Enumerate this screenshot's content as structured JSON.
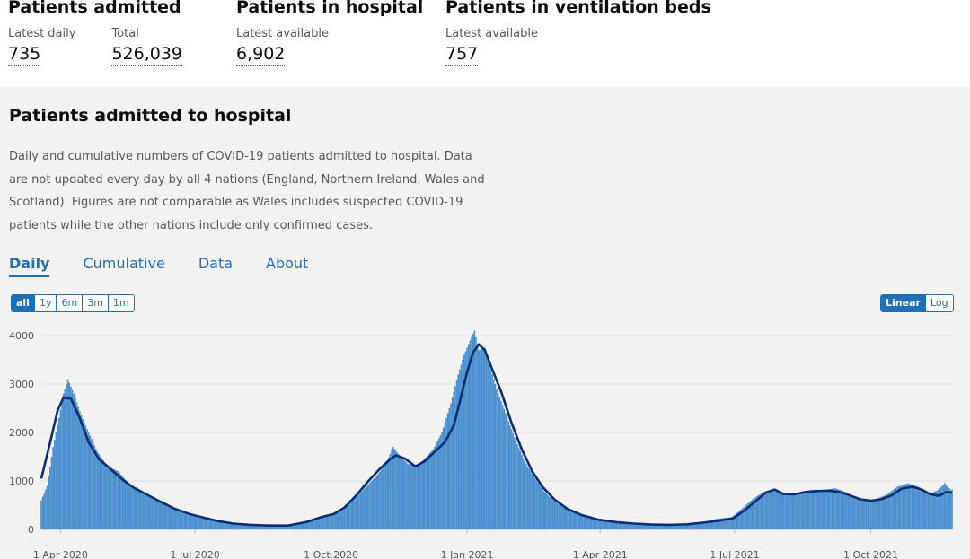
{
  "headlines": {
    "admitted": {
      "title": "Patients admitted",
      "metrics": [
        {
          "label": "Latest daily",
          "value": "735"
        },
        {
          "label": "Total",
          "value": "526,039"
        }
      ]
    },
    "in_hospital": {
      "title": "Patients in hospital",
      "metrics": [
        {
          "label": "Latest available",
          "value": "6,902"
        }
      ]
    },
    "ventilation": {
      "title": "Patients in ventilation beds",
      "metrics": [
        {
          "label": "Latest available",
          "value": "757"
        }
      ]
    }
  },
  "card": {
    "title": "Patients admitted to hospital",
    "description": "Daily and cumulative numbers of COVID-19 patients admitted to hospital. Data are not updated every day by all 4 nations (England, Northern Ireland, Wales and Scotland). Figures are not comparable as Wales includes suspected COVID-19 patients while the other nations include only confirmed cases.",
    "tabs": [
      {
        "label": "Daily",
        "active": true
      },
      {
        "label": "Cumulative",
        "active": false
      },
      {
        "label": "Data",
        "active": false
      },
      {
        "label": "About",
        "active": false
      }
    ],
    "range_buttons": [
      {
        "label": "all",
        "active": true
      },
      {
        "label": "1y",
        "active": false
      },
      {
        "label": "6m",
        "active": false
      },
      {
        "label": "3m",
        "active": false
      },
      {
        "label": "1m",
        "active": false
      }
    ],
    "scale_buttons": [
      {
        "label": "Linear",
        "active": true
      },
      {
        "label": "Log",
        "active": false
      }
    ]
  },
  "colors": {
    "bar": "#4a90cf",
    "line": "#0b2d73",
    "accent": "#1d70b8",
    "grid": "#e1e1e1"
  },
  "chart_data": {
    "type": "bar",
    "title": "",
    "xlabel": "",
    "ylabel": "",
    "ylim": [
      0,
      4000
    ],
    "xlim": [
      "2020-03-19",
      "2021-11-25"
    ],
    "y_ticks": [
      0,
      1000,
      2000,
      3000,
      4000
    ],
    "x_ticks": [
      {
        "date": "2020-04-01",
        "label": "1 Apr 2020"
      },
      {
        "date": "2020-07-01",
        "label": "1 Jul 2020"
      },
      {
        "date": "2020-10-01",
        "label": "1 Oct 2020"
      },
      {
        "date": "2021-01-01",
        "label": "1 Jan 2021"
      },
      {
        "date": "2021-04-01",
        "label": "1 Apr 2021"
      },
      {
        "date": "2021-07-01",
        "label": "1 Jul 2021"
      },
      {
        "date": "2021-10-01",
        "label": "1 Oct 2021"
      }
    ],
    "series": [
      {
        "kind": "bar",
        "points": [
          [
            "2020-03-19",
            600
          ],
          [
            "2020-03-23",
            900
          ],
          [
            "2020-03-27",
            1700
          ],
          [
            "2020-03-31",
            2300
          ],
          [
            "2020-04-03",
            2800
          ],
          [
            "2020-04-06",
            3100
          ],
          [
            "2020-04-10",
            2800
          ],
          [
            "2020-04-15",
            2350
          ],
          [
            "2020-04-20",
            2000
          ],
          [
            "2020-04-26",
            1600
          ],
          [
            "2020-05-03",
            1300
          ],
          [
            "2020-05-10",
            1200
          ],
          [
            "2020-05-17",
            950
          ],
          [
            "2020-05-24",
            800
          ],
          [
            "2020-05-31",
            680
          ],
          [
            "2020-06-07",
            560
          ],
          [
            "2020-06-14",
            450
          ],
          [
            "2020-06-21",
            380
          ],
          [
            "2020-06-28",
            300
          ],
          [
            "2020-07-05",
            230
          ],
          [
            "2020-07-15",
            180
          ],
          [
            "2020-07-25",
            130
          ],
          [
            "2020-08-04",
            100
          ],
          [
            "2020-08-14",
            90
          ],
          [
            "2020-08-24",
            80
          ],
          [
            "2020-09-03",
            90
          ],
          [
            "2020-09-13",
            150
          ],
          [
            "2020-09-23",
            250
          ],
          [
            "2020-10-03",
            340
          ],
          [
            "2020-10-13",
            520
          ],
          [
            "2020-10-23",
            830
          ],
          [
            "2020-11-02",
            1150
          ],
          [
            "2020-11-07",
            1350
          ],
          [
            "2020-11-12",
            1700
          ],
          [
            "2020-11-17",
            1500
          ],
          [
            "2020-11-22",
            1350
          ],
          [
            "2020-11-28",
            1300
          ],
          [
            "2020-12-03",
            1450
          ],
          [
            "2020-12-09",
            1650
          ],
          [
            "2020-12-15",
            2000
          ],
          [
            "2020-12-21",
            2600
          ],
          [
            "2020-12-26",
            3200
          ],
          [
            "2020-12-30",
            3600
          ],
          [
            "2021-01-03",
            3900
          ],
          [
            "2021-01-06",
            4100
          ],
          [
            "2021-01-09",
            3700
          ],
          [
            "2021-01-13",
            3750
          ],
          [
            "2021-01-17",
            3300
          ],
          [
            "2021-01-21",
            2900
          ],
          [
            "2021-01-27",
            2400
          ],
          [
            "2021-02-02",
            1900
          ],
          [
            "2021-02-09",
            1400
          ],
          [
            "2021-02-16",
            1050
          ],
          [
            "2021-02-23",
            750
          ],
          [
            "2021-03-02",
            560
          ],
          [
            "2021-03-09",
            420
          ],
          [
            "2021-03-16",
            320
          ],
          [
            "2021-03-23",
            250
          ],
          [
            "2021-03-30",
            200
          ],
          [
            "2021-04-10",
            160
          ],
          [
            "2021-04-20",
            130
          ],
          [
            "2021-04-30",
            110
          ],
          [
            "2021-05-10",
            100
          ],
          [
            "2021-05-20",
            100
          ],
          [
            "2021-05-30",
            110
          ],
          [
            "2021-06-09",
            140
          ],
          [
            "2021-06-19",
            220
          ],
          [
            "2021-06-29",
            250
          ],
          [
            "2021-07-06",
            430
          ],
          [
            "2021-07-13",
            620
          ],
          [
            "2021-07-20",
            760
          ],
          [
            "2021-07-27",
            840
          ],
          [
            "2021-08-03",
            720
          ],
          [
            "2021-08-10",
            740
          ],
          [
            "2021-08-17",
            790
          ],
          [
            "2021-08-24",
            820
          ],
          [
            "2021-08-31",
            810
          ],
          [
            "2021-09-07",
            850
          ],
          [
            "2021-09-14",
            770
          ],
          [
            "2021-09-21",
            640
          ],
          [
            "2021-09-28",
            600
          ],
          [
            "2021-10-05",
            630
          ],
          [
            "2021-10-12",
            720
          ],
          [
            "2021-10-19",
            880
          ],
          [
            "2021-10-26",
            950
          ],
          [
            "2021-11-02",
            880
          ],
          [
            "2021-11-09",
            720
          ],
          [
            "2021-11-16",
            820
          ],
          [
            "2021-11-20",
            960
          ],
          [
            "2021-11-24",
            820
          ]
        ]
      },
      {
        "kind": "line",
        "points": [
          [
            "2020-03-19",
            1050
          ],
          [
            "2020-03-25",
            1800
          ],
          [
            "2020-03-30",
            2450
          ],
          [
            "2020-04-03",
            2720
          ],
          [
            "2020-04-08",
            2700
          ],
          [
            "2020-04-14",
            2300
          ],
          [
            "2020-04-20",
            1800
          ],
          [
            "2020-04-27",
            1450
          ],
          [
            "2020-05-04",
            1270
          ],
          [
            "2020-05-12",
            1050
          ],
          [
            "2020-05-20",
            870
          ],
          [
            "2020-05-28",
            740
          ],
          [
            "2020-06-07",
            580
          ],
          [
            "2020-06-17",
            430
          ],
          [
            "2020-06-27",
            320
          ],
          [
            "2020-07-07",
            240
          ],
          [
            "2020-07-17",
            170
          ],
          [
            "2020-07-27",
            120
          ],
          [
            "2020-08-07",
            95
          ],
          [
            "2020-08-20",
            80
          ],
          [
            "2020-09-02",
            80
          ],
          [
            "2020-09-14",
            150
          ],
          [
            "2020-09-25",
            260
          ],
          [
            "2020-10-03",
            320
          ],
          [
            "2020-10-10",
            450
          ],
          [
            "2020-10-18",
            700
          ],
          [
            "2020-10-26",
            990
          ],
          [
            "2020-11-03",
            1250
          ],
          [
            "2020-11-10",
            1450
          ],
          [
            "2020-11-14",
            1530
          ],
          [
            "2020-11-20",
            1460
          ],
          [
            "2020-11-27",
            1300
          ],
          [
            "2020-12-03",
            1400
          ],
          [
            "2020-12-10",
            1600
          ],
          [
            "2020-12-17",
            1800
          ],
          [
            "2020-12-23",
            2150
          ],
          [
            "2020-12-28",
            2750
          ],
          [
            "2021-01-01",
            3250
          ],
          [
            "2021-01-05",
            3650
          ],
          [
            "2021-01-09",
            3820
          ],
          [
            "2021-01-13",
            3700
          ],
          [
            "2021-01-18",
            3300
          ],
          [
            "2021-01-24",
            2850
          ],
          [
            "2021-01-31",
            2200
          ],
          [
            "2021-02-07",
            1650
          ],
          [
            "2021-02-14",
            1200
          ],
          [
            "2021-02-21",
            880
          ],
          [
            "2021-03-01",
            620
          ],
          [
            "2021-03-10",
            420
          ],
          [
            "2021-03-20",
            290
          ],
          [
            "2021-03-31",
            200
          ],
          [
            "2021-04-12",
            150
          ],
          [
            "2021-04-24",
            120
          ],
          [
            "2021-05-06",
            100
          ],
          [
            "2021-05-18",
            95
          ],
          [
            "2021-05-30",
            105
          ],
          [
            "2021-06-10",
            140
          ],
          [
            "2021-06-20",
            180
          ],
          [
            "2021-06-30",
            230
          ],
          [
            "2021-07-08",
            400
          ],
          [
            "2021-07-15",
            580
          ],
          [
            "2021-07-22",
            760
          ],
          [
            "2021-07-28",
            820
          ],
          [
            "2021-08-03",
            730
          ],
          [
            "2021-08-10",
            720
          ],
          [
            "2021-08-18",
            770
          ],
          [
            "2021-08-26",
            790
          ],
          [
            "2021-09-03",
            800
          ],
          [
            "2021-09-10",
            770
          ],
          [
            "2021-09-17",
            700
          ],
          [
            "2021-09-24",
            620
          ],
          [
            "2021-10-01",
            590
          ],
          [
            "2021-10-08",
            620
          ],
          [
            "2021-10-15",
            700
          ],
          [
            "2021-10-22",
            840
          ],
          [
            "2021-10-29",
            880
          ],
          [
            "2021-11-04",
            830
          ],
          [
            "2021-11-10",
            730
          ],
          [
            "2021-11-16",
            690
          ],
          [
            "2021-11-21",
            770
          ],
          [
            "2021-11-25",
            760
          ]
        ]
      }
    ]
  }
}
